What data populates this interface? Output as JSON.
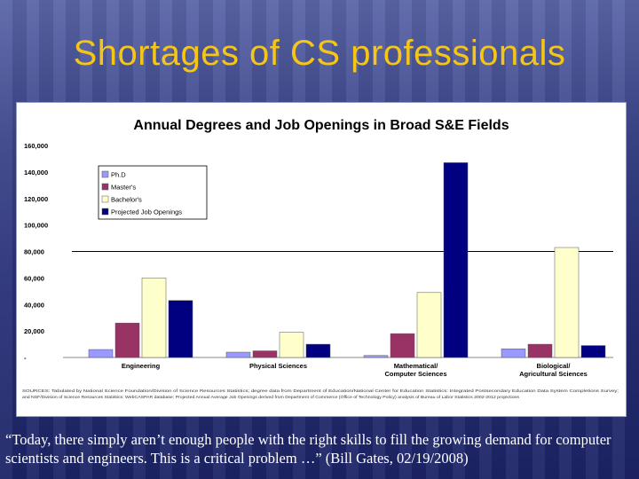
{
  "slide": {
    "title": "Shortages of CS professionals",
    "quote": "“Today, there simply aren’t enough people with the right skills to fill the growing demand for computer scientists and engineers. This is a critical problem …” (Bill Gates, 02/19/2008)"
  },
  "colors": {
    "background": "#283078",
    "title": "#f5c518",
    "quote": "#ffffff"
  },
  "chart_data": {
    "type": "bar",
    "title": "Annual Degrees and Job Openings in Broad S&E Fields",
    "categories": [
      "Engineering",
      "Physical Sciences",
      "Mathematical/\nComputer Sciences",
      "Biological/\nAgricultural Sciences"
    ],
    "series": [
      {
        "name": "Ph.D",
        "color": "#9999ff",
        "values": [
          6000,
          4000,
          1500,
          6500
        ]
      },
      {
        "name": "Master's",
        "color": "#993366",
        "values": [
          26000,
          5000,
          18000,
          10000
        ]
      },
      {
        "name": "Bachelor's",
        "color": "#ffffcc",
        "values": [
          60000,
          19000,
          49000,
          83000
        ]
      },
      {
        "name": "Projected Job Openings",
        "color": "#000080",
        "values": [
          43000,
          10000,
          147000,
          9000
        ]
      }
    ],
    "ylim": [
      0,
      160000
    ],
    "yticks": [
      0,
      20000,
      40000,
      60000,
      80000,
      100000,
      120000,
      140000,
      160000
    ],
    "ytick_labels": [
      "-",
      "20,000",
      "40,000",
      "60,000",
      "80,000",
      "100,000",
      "120,000",
      "140,000",
      "160,000"
    ],
    "reference_line": 80000,
    "legend": "top-left",
    "grid": false,
    "source_note": "SOURCES: Tabulated by National Science Foundation/Division of Science Resources Statistics; degree data from Department of Education/National Center for Education Statistics: Integrated Postsecondary Education Data System Completions Survey; and NSF/Division of Science Resources Statistics: WebCASPAR database; Projected Annual Average Job Openings derived from Department of Commerce (Office of Technology Policy) analysis of Bureau of Labor Statistics 2002-2012 projections"
  }
}
